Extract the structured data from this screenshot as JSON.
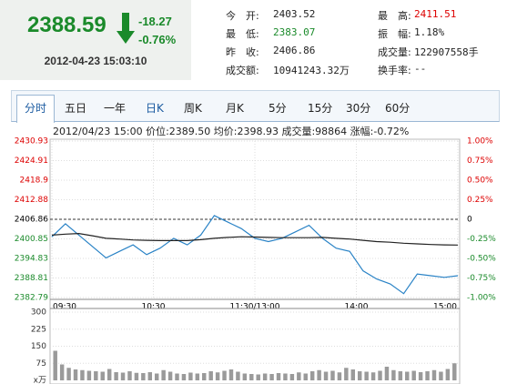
{
  "quote": {
    "price": "2388.59",
    "change": "-18.27",
    "change_pct": "-0.76%",
    "time": "2012-04-23 15:03:10"
  },
  "info": [
    {
      "label": "今　开:",
      "value": "2403.52"
    },
    {
      "label": "最　高:",
      "value": "2411.51"
    },
    {
      "label": "最　低:",
      "value": "2383.07"
    },
    {
      "label": "振　幅:",
      "value": "1.18%"
    },
    {
      "label": "昨　收:",
      "value": "2406.86"
    },
    {
      "label": "成交量:",
      "value": "122907558手"
    },
    {
      "label": "成交额:",
      "value": "10941243.32万"
    },
    {
      "label": "换手率:",
      "value": "--"
    }
  ],
  "tabs": [
    "分时",
    "五日",
    "一年",
    "日K",
    "周K",
    "月K",
    "5分",
    "15分",
    "30分",
    "60分"
  ],
  "status": "2012/04/23 15:00 价位:2389.50 均价:2398.93 成交量:98864 涨幅:-0.72%",
  "chart_data": [
    {
      "type": "line",
      "x": [
        0,
        8,
        16,
        24,
        32,
        40,
        48,
        56,
        64,
        72,
        80,
        88,
        96,
        104,
        112,
        120,
        128,
        136,
        144,
        152,
        160,
        168,
        176,
        184,
        192,
        200,
        208,
        216,
        224,
        232,
        240
      ],
      "xlim": [
        0,
        240
      ],
      "xticks": [
        {
          "value": 0,
          "label": "09:30"
        },
        {
          "value": 60,
          "label": "10:30"
        },
        {
          "value": 120,
          "label": "11:30/13:00"
        },
        {
          "value": 180,
          "label": "14:00"
        },
        {
          "value": 240,
          "label": "15:00"
        }
      ],
      "ylim": [
        2382.79,
        2430.93
      ],
      "yticks": [
        2382.79,
        2388.81,
        2394.83,
        2400.85,
        2406.86,
        2412.88,
        2418.9,
        2424.91,
        2430.93
      ],
      "y2lim": [
        -1,
        1
      ],
      "y2ticks": [
        {
          "value": -1,
          "label": "-1.00%"
        },
        {
          "value": -0.75,
          "label": "-0.75%"
        },
        {
          "value": -0.5,
          "label": "-0.50%"
        },
        {
          "value": -0.25,
          "label": "-0.25%"
        },
        0,
        {
          "value": 0.25,
          "label": "0.25%"
        },
        {
          "value": 0.5,
          "label": "0.50%"
        },
        {
          "value": 0.75,
          "label": "0.75%"
        },
        {
          "value": 1,
          "label": "1.00%"
        }
      ],
      "series": [
        {
          "name": "价位",
          "color": "#2a83c6",
          "values": [
            2401.5,
            2405.5,
            2402,
            2398.5,
            2395,
            2397,
            2399,
            2396,
            2398,
            2401,
            2399,
            2402,
            2408,
            2406,
            2404,
            2401,
            2400,
            2401,
            2403,
            2405,
            2401,
            2398,
            2397,
            2391,
            2388.5,
            2387,
            2384,
            2390,
            2389.5,
            2389,
            2389.5
          ]
        },
        {
          "name": "均价",
          "color": "#222222",
          "values": [
            2402,
            2402.3,
            2402.5,
            2401.8,
            2401,
            2400.8,
            2400.5,
            2400.4,
            2400.3,
            2400.3,
            2400.3,
            2400.6,
            2401,
            2401.3,
            2401.5,
            2401.4,
            2401.3,
            2401.2,
            2401.2,
            2401.2,
            2401.3,
            2401,
            2400.8,
            2400.4,
            2400,
            2399.8,
            2399.5,
            2399.3,
            2399.1,
            2399,
            2398.93
          ]
        }
      ],
      "grid": true
    },
    {
      "type": "bar",
      "ylim": [
        0,
        300
      ],
      "yticks": [
        75,
        150,
        225,
        300
      ],
      "unit": "x万",
      "color": "#9a9a9a",
      "values": [
        130,
        70,
        55,
        48,
        45,
        42,
        40,
        38,
        50,
        36,
        34,
        40,
        33,
        32,
        36,
        30,
        45,
        38,
        30,
        28,
        34,
        30,
        32,
        40,
        35,
        42,
        48,
        38,
        30,
        28,
        26,
        30,
        28,
        32,
        30,
        28,
        35,
        30,
        40,
        45,
        38,
        42,
        35,
        55,
        48,
        40,
        38,
        35,
        42,
        60,
        45,
        40,
        38,
        42,
        36,
        40,
        45,
        38,
        50,
        75
      ]
    }
  ]
}
